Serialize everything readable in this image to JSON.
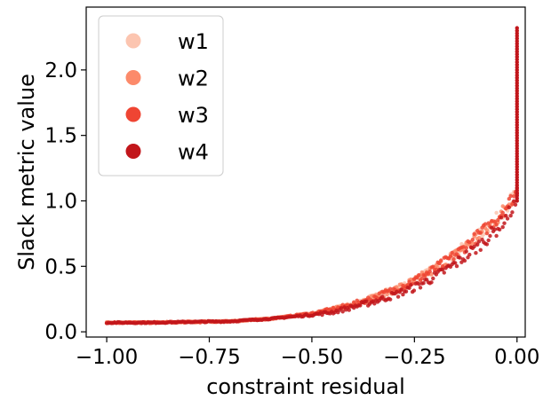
{
  "chart_data": {
    "type": "scatter",
    "title": "",
    "xlabel": "constraint residual",
    "ylabel": "Slack metric value",
    "xlim": [
      -1.05,
      0.02
    ],
    "ylim": [
      -0.04,
      2.48
    ],
    "x_ticks": [
      -1.0,
      -0.75,
      -0.5,
      -0.25,
      0.0
    ],
    "x_tick_labels": [
      "−1.00",
      "−0.75",
      "−0.50",
      "−0.25",
      "0.00"
    ],
    "y_ticks": [
      0.0,
      0.5,
      1.0,
      1.5,
      2.0
    ],
    "y_tick_labels": [
      "0.0",
      "0.5",
      "1.0",
      "1.5",
      "2.0"
    ],
    "grid": false,
    "legend_position": "top-left",
    "series": [
      {
        "name": "w1",
        "color": "#fcc5b0",
        "x": [
          -1.0,
          -0.9,
          -0.8,
          -0.7,
          -0.6,
          -0.5,
          -0.45,
          -0.4,
          -0.35,
          -0.3,
          -0.25,
          -0.2,
          -0.15,
          -0.1,
          -0.05,
          -0.02,
          0.0
        ],
        "y": [
          0.07,
          0.07,
          0.075,
          0.08,
          0.1,
          0.14,
          0.17,
          0.21,
          0.26,
          0.32,
          0.39,
          0.48,
          0.59,
          0.72,
          0.86,
          0.98,
          1.08
        ]
      },
      {
        "name": "w2",
        "color": "#fc8a6a",
        "x": [
          -1.0,
          -0.9,
          -0.8,
          -0.7,
          -0.6,
          -0.5,
          -0.45,
          -0.4,
          -0.35,
          -0.3,
          -0.25,
          -0.2,
          -0.15,
          -0.1,
          -0.05,
          -0.02,
          0.0
        ],
        "y": [
          0.07,
          0.07,
          0.075,
          0.08,
          0.1,
          0.14,
          0.17,
          0.21,
          0.26,
          0.32,
          0.39,
          0.48,
          0.59,
          0.72,
          0.86,
          0.98,
          1.08
        ]
      },
      {
        "name": "w3",
        "color": "#ef4533",
        "x": [
          -1.0,
          -0.9,
          -0.8,
          -0.7,
          -0.6,
          -0.5,
          -0.45,
          -0.4,
          -0.35,
          -0.3,
          -0.25,
          -0.2,
          -0.15,
          -0.1,
          -0.05,
          -0.02,
          0.0
        ],
        "y": [
          0.07,
          0.07,
          0.075,
          0.08,
          0.1,
          0.14,
          0.17,
          0.21,
          0.26,
          0.32,
          0.39,
          0.48,
          0.59,
          0.72,
          0.86,
          0.98,
          1.08
        ]
      },
      {
        "name": "w4",
        "color": "#c2161b",
        "x": [
          -1.0,
          -0.9,
          -0.8,
          -0.7,
          -0.6,
          -0.5,
          -0.45,
          -0.4,
          -0.35,
          -0.3,
          -0.25,
          -0.2,
          -0.15,
          -0.1,
          -0.05,
          -0.02,
          0.0,
          0.0,
          0.0,
          0.0,
          0.0
        ],
        "y": [
          0.07,
          0.07,
          0.075,
          0.08,
          0.1,
          0.13,
          0.15,
          0.19,
          0.23,
          0.28,
          0.34,
          0.42,
          0.52,
          0.64,
          0.78,
          0.9,
          1.0,
          1.3,
          1.7,
          2.0,
          2.33
        ]
      }
    ]
  }
}
